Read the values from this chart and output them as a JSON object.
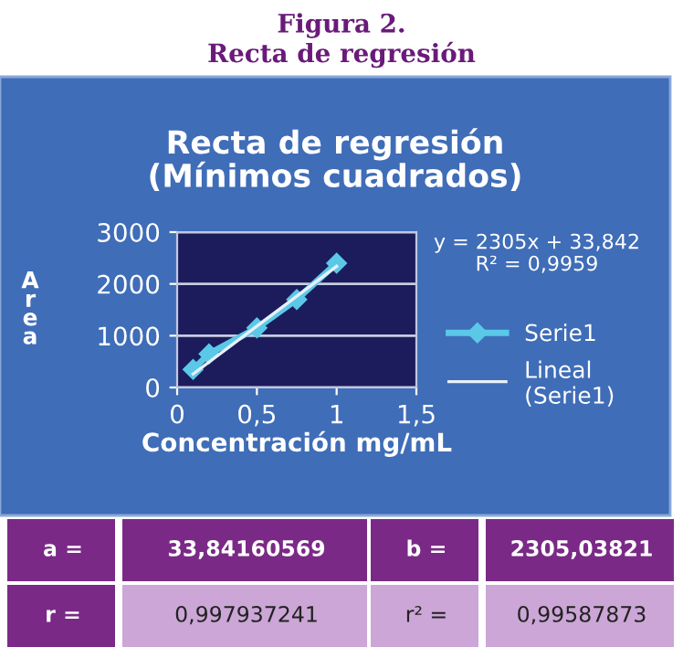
{
  "chart_data": {
    "type": "line",
    "title": "Recta de regresión\n(Mínimos cuadrados)",
    "xlabel": "Concentración mg/mL",
    "ylabel": "Area",
    "series": [
      {
        "name": "Serie1",
        "color": "#5bc8e8",
        "marker": "diamond",
        "x": [
          0.1,
          0.2,
          0.5,
          0.75,
          1
        ],
        "values": [
          350,
          650,
          1150,
          1700,
          2400
        ]
      },
      {
        "name": "Lineal (Serie1)",
        "color": "#e8f0f8",
        "marker": "none",
        "x": [
          0.1,
          1
        ],
        "values": [
          260,
          2340
        ]
      }
    ],
    "xlim": [
      0,
      1.5
    ],
    "xticks": [
      0,
      {
        "value": 0.5,
        "label": "0,5"
      },
      1,
      {
        "value": 1.5,
        "label": "1,5"
      }
    ],
    "ylim": [
      0,
      3000
    ],
    "yticks": [
      0,
      1000,
      2000,
      3000
    ],
    "grid": "y",
    "legend": "right",
    "annotations": [
      "Figura 2.",
      "Recta de regresión",
      "y = 2305x + 33,842",
      "R² = 0,9959",
      "a =",
      "33,84160569",
      "b =",
      "2305,03821",
      "r =",
      "0,997937241",
      "r² =",
      "0,99587873"
    ]
  }
}
